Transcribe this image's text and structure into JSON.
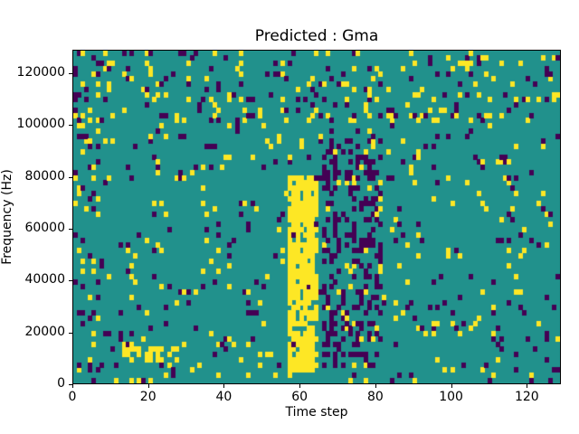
{
  "figure": {
    "background": "#ffffff"
  },
  "chart_data": {
    "type": "heatmap",
    "title": "Predicted : Gma",
    "xlabel": "Time step",
    "ylabel": "Frequency (Hz)",
    "xlim": [
      0,
      129
    ],
    "ylim": [
      0,
      129000
    ],
    "xticks": [
      0,
      20,
      40,
      60,
      80,
      100,
      120
    ],
    "yticks": [
      0,
      20000,
      40000,
      60000,
      80000,
      100000,
      120000
    ],
    "grid": {
      "cols": 129,
      "rows": 64
    },
    "legend": "none",
    "colormap": "viridis",
    "cell_colors": {
      "low": "#440154",
      "mid": "#21918c",
      "high": "#fde725"
    },
    "generation": {
      "seed": 1337,
      "base_high_prob": 0.032,
      "base_low_prob": 0.034,
      "features": [
        {
          "name": "top-band-activity",
          "col_min": 0,
          "col_max": 128,
          "freq_min": 100000,
          "freq_max": 129000,
          "high_prob": 0.07,
          "low_prob": 0.06
        },
        {
          "name": "yellow-burst-band",
          "col_min": 57,
          "col_max": 64,
          "freq_min": 4000,
          "freq_max": 80000,
          "high_prob": 0.78,
          "low_prob": 0.02
        },
        {
          "name": "dark-cluster",
          "col_min": 66,
          "col_max": 81,
          "freq_min": 6000,
          "freq_max": 95000,
          "high_prob": 0.05,
          "low_prob": 0.3
        },
        {
          "name": "low-freq-yellow-run",
          "col_min": 13,
          "col_max": 27,
          "freq_min": 9000,
          "freq_max": 14000,
          "high_prob": 0.45
        },
        {
          "name": "left-edge-activity",
          "col_min": 0,
          "col_max": 6,
          "freq_min": 0,
          "freq_max": 129000,
          "high_prob": 0.08,
          "low_prob": 0.1
        }
      ]
    },
    "description": "Ternary spectrogram-like heatmap on a teal (mid) background with sparse yellow (high) and dark purple (low) cells; a dense yellow vertical band near time step 60 spanning ~4000-80000 Hz and a dark purple cluster near time steps 66-81."
  }
}
